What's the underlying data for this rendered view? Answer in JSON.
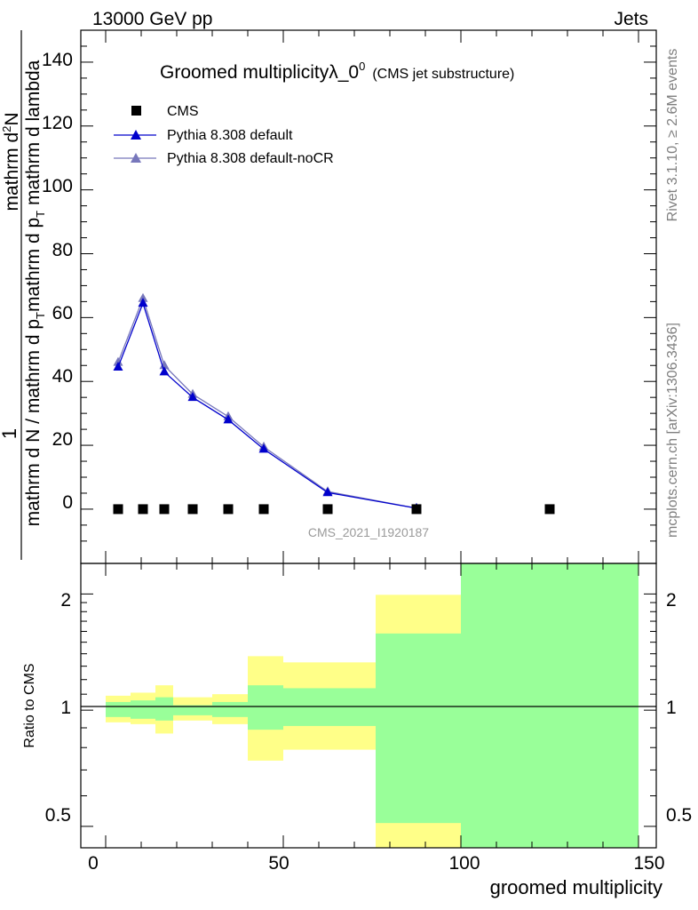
{
  "header": {
    "left": "13000 GeV pp",
    "right": "Jets"
  },
  "side": {
    "rivet": "Rivet 3.1.10, ≥ 2.6M events",
    "mcplots": "mcplots.cern.ch [arXiv:1306.3436]"
  },
  "chart_data": {
    "type": "line",
    "title": "Groomed multiplicityλ_0",
    "title_sup": "0",
    "subtitle": "(CMS jet substructure)",
    "analysis": "CMS_2021_I1920187",
    "xlabel": "groomed multiplicity",
    "ylabel_num": "1",
    "ylabel_den": "mathrm d N / mathrm d p",
    "ylabel_den_sub": "T",
    "ylabel_den2": "mathrm d p",
    "ylabel_den2_sub": "T",
    "ylabel_den3": "mathrm d lambda",
    "ylabel_num2": "mathrm d",
    "ylabel_num2_sup": "2",
    "ylabel_num2_tail": "N",
    "ratio_ylabel": "Ratio to CMS",
    "xlim": [
      -7,
      155
    ],
    "ylim": [
      -17,
      150
    ],
    "ratio_ylim": [
      0.44,
      2.4
    ],
    "x_ticks": [
      "0",
      "50",
      "100",
      "150"
    ],
    "y_ticks": [
      "0",
      "20",
      "40",
      "60",
      "80",
      "100",
      "120",
      "140"
    ],
    "ratio_ticks": [
      "0.5",
      "1",
      "2"
    ],
    "legend": [
      {
        "name": "CMS",
        "color": "#000000",
        "marker": "square"
      },
      {
        "name": "Pythia 8.308 default",
        "color": "#0000cc",
        "marker": "triangle"
      },
      {
        "name": "Pythia 8.308 default-noCR",
        "color": "#7777bb",
        "marker": "triangle"
      }
    ],
    "cms": {
      "x": [
        3.5,
        10.5,
        16.5,
        24.5,
        34.5,
        44.5,
        62.5,
        87.5,
        125
      ],
      "y": [
        0,
        0,
        0,
        0,
        0,
        0,
        0,
        0,
        0
      ]
    },
    "series": [
      {
        "name": "Pythia 8.308 default",
        "x": [
          3.5,
          10.5,
          16.5,
          24.5,
          34.5,
          44.5,
          62.5,
          87.5
        ],
        "y": [
          44.5,
          64.5,
          43.0,
          35.0,
          28.0,
          18.8,
          5.2,
          0.3
        ]
      },
      {
        "name": "Pythia 8.308 default-noCR",
        "x": [
          3.5,
          10.5,
          16.5,
          24.5,
          34.5,
          44.5,
          62.5,
          87.5
        ],
        "y": [
          46.0,
          66.0,
          45.0,
          36.0,
          29.0,
          19.5,
          5.5,
          0.3
        ]
      }
    ],
    "ratio_bands": [
      {
        "x0": 0,
        "x1": 7,
        "g_lo": 0.96,
        "g_hi": 1.05,
        "y_lo": 0.93,
        "y_hi": 1.09
      },
      {
        "x0": 7,
        "x1": 14,
        "g_lo": 0.95,
        "g_hi": 1.06,
        "y_lo": 0.92,
        "y_hi": 1.11
      },
      {
        "x0": 14,
        "x1": 19,
        "g_lo": 0.94,
        "g_hi": 1.08,
        "y_lo": 0.87,
        "y_hi": 1.16
      },
      {
        "x0": 19,
        "x1": 30,
        "g_lo": 0.97,
        "g_hi": 1.03,
        "y_lo": 0.94,
        "y_hi": 1.08
      },
      {
        "x0": 30,
        "x1": 40,
        "g_lo": 0.96,
        "g_hi": 1.05,
        "y_lo": 0.92,
        "y_hi": 1.1
      },
      {
        "x0": 40,
        "x1": 50,
        "g_lo": 0.89,
        "g_hi": 1.16,
        "y_lo": 0.74,
        "y_hi": 1.38
      },
      {
        "x0": 50,
        "x1": 76,
        "g_lo": 0.91,
        "g_hi": 1.14,
        "y_lo": 0.79,
        "y_hi": 1.33
      },
      {
        "x0": 76,
        "x1": 100,
        "g_lo": 0.51,
        "g_hi": 1.58,
        "y_lo": 0.44,
        "y_hi": 1.99
      },
      {
        "x0": 100,
        "x1": 150,
        "g_lo": 0.44,
        "g_hi": 2.4,
        "y_lo": 0.44,
        "y_hi": 2.4
      }
    ],
    "colors": {
      "green": "#99ff99",
      "yellow": "#ffff88",
      "default": "#0000cc",
      "noCR": "#7777bb",
      "cms": "#000000"
    }
  }
}
